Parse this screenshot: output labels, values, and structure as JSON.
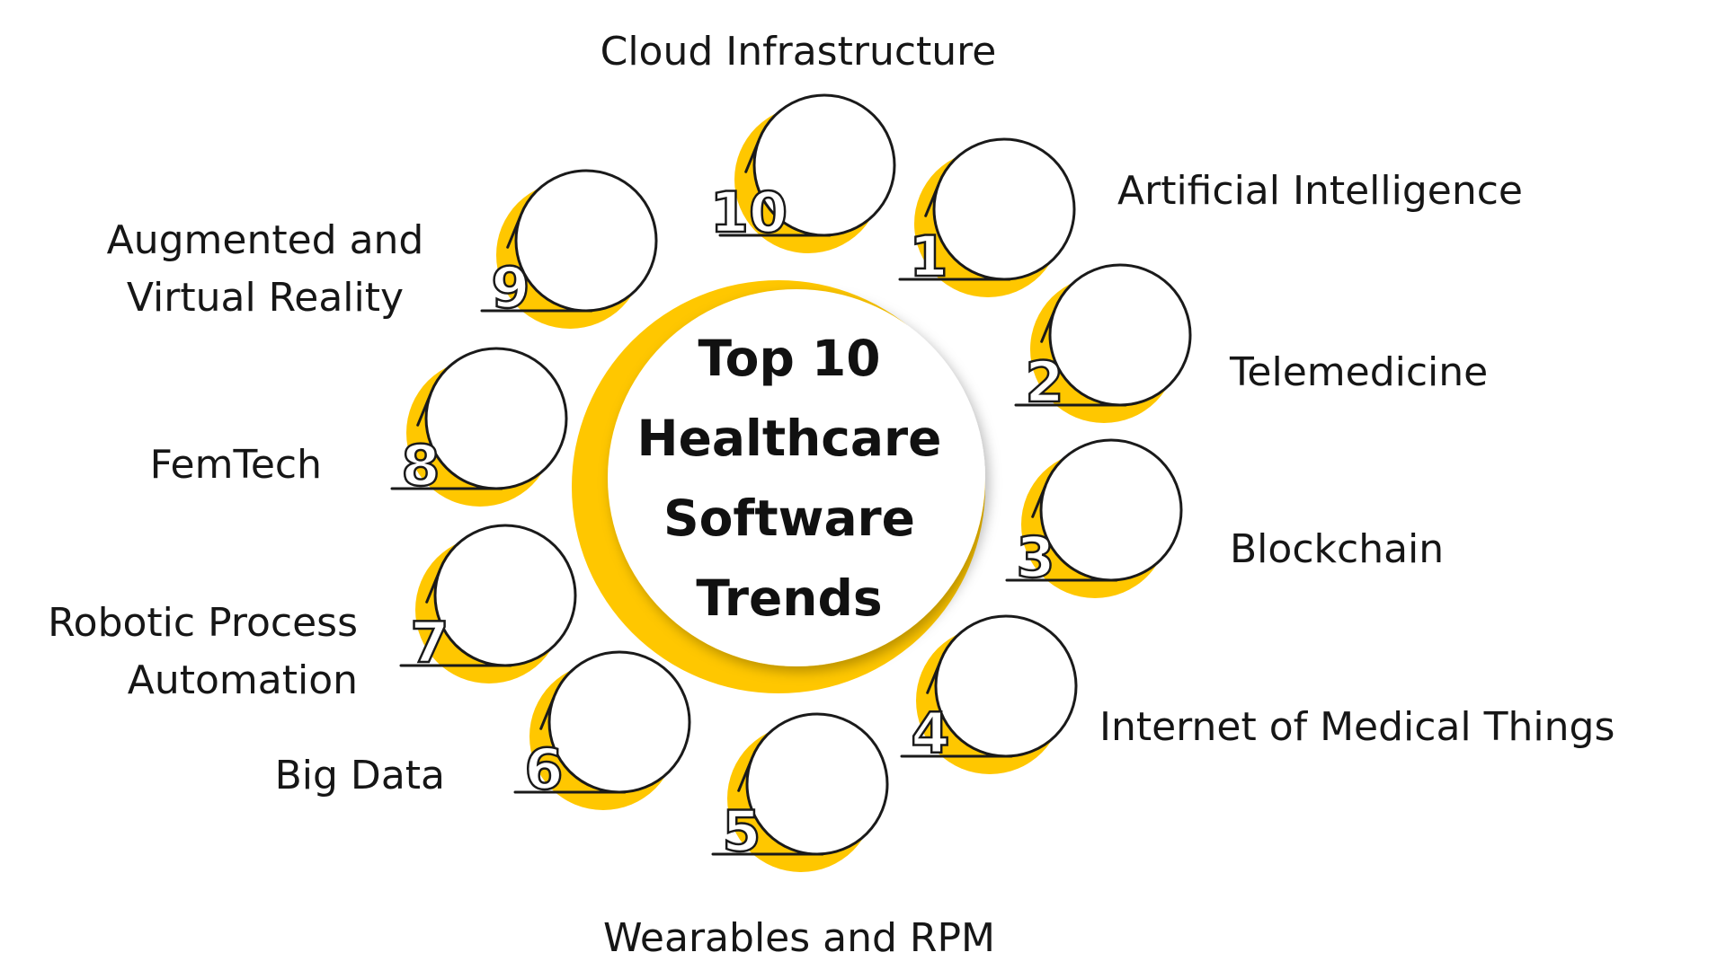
{
  "title": {
    "lines": [
      "Top 10",
      "Healthcare",
      "Software",
      "Trends"
    ]
  },
  "colors": {
    "accent": "#FFC700",
    "outline": "#1a1a1a",
    "circle_fill": "#ffffff"
  },
  "trends": [
    {
      "number": "1",
      "lines": [
        "Artificial Intelligence"
      ]
    },
    {
      "number": "2",
      "lines": [
        "Telemedicine"
      ]
    },
    {
      "number": "3",
      "lines": [
        "Blockchain"
      ]
    },
    {
      "number": "4",
      "lines": [
        "Internet of Medical Things"
      ]
    },
    {
      "number": "5",
      "lines": [
        "Wearables and RPM"
      ]
    },
    {
      "number": "6",
      "lines": [
        "Big Data"
      ]
    },
    {
      "number": "7",
      "lines": [
        "Robotic Process",
        "Automation"
      ]
    },
    {
      "number": "8",
      "lines": [
        "FemTech"
      ]
    },
    {
      "number": "9",
      "lines": [
        "Augmented and",
        "Virtual Reality"
      ]
    },
    {
      "number": "10",
      "lines": [
        "Cloud Infrastructure"
      ]
    }
  ]
}
